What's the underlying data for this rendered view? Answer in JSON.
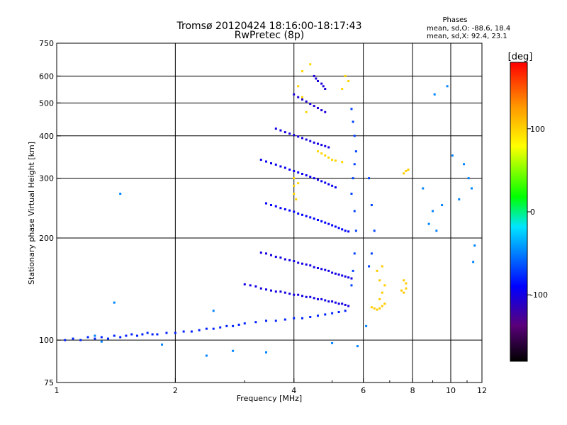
{
  "chart_data": {
    "type": "scatter",
    "title": "Tromsø 20120424 18:16:00-18:17:43",
    "subtitle": "RwPretec (8p)",
    "xlabel": "Frequency [MHz]",
    "ylabel": "Stationary phase Virtual Height [km]",
    "xscale": "log",
    "yscale": "log",
    "xlim": [
      1,
      12
    ],
    "ylim": [
      75,
      750
    ],
    "xticks": [
      1,
      2,
      4,
      6,
      8,
      10,
      12
    ],
    "xticklabels": [
      "1",
      "2",
      "4",
      "6",
      "8",
      "10",
      "12"
    ],
    "yticks": [
      75,
      100,
      200,
      300,
      400,
      500,
      600,
      750
    ],
    "yticklabels": [
      "75",
      "100",
      "200",
      "300",
      "400",
      "500",
      "600",
      "750"
    ],
    "grid": true,
    "stats": {
      "header": "Phases",
      "line1": "mean, sd,O: -88.6, 18.4",
      "line2": "mean, sd,X:  92.4, 23.1"
    },
    "colorbar": {
      "label": "[deg]",
      "range": [
        -180,
        180
      ],
      "ticks": [
        100,
        0,
        -100
      ],
      "ticklabels": [
        "100",
        "0",
        "-100"
      ],
      "colormap": "rainbow (black-purple-blue-cyan-green-yellow-orange-red)"
    },
    "series": [
      {
        "points": [
          [
            1.05,
            100
          ],
          [
            1.1,
            101
          ],
          [
            1.15,
            100
          ],
          [
            1.2,
            102
          ],
          [
            1.25,
            101
          ],
          [
            1.3,
            102
          ],
          [
            1.35,
            101
          ],
          [
            1.4,
            103
          ],
          [
            1.45,
            102
          ],
          [
            1.5,
            103
          ],
          [
            1.55,
            104
          ],
          [
            1.6,
            103
          ],
          [
            1.65,
            104
          ],
          [
            1.7,
            105
          ],
          [
            1.75,
            104
          ],
          [
            1.8,
            104
          ],
          [
            1.9,
            105
          ],
          [
            2.0,
            105
          ],
          [
            2.1,
            106
          ],
          [
            2.2,
            106
          ],
          [
            2.3,
            107
          ],
          [
            2.4,
            108
          ],
          [
            2.5,
            108
          ],
          [
            2.6,
            109
          ],
          [
            2.7,
            110
          ],
          [
            2.8,
            110
          ],
          [
            2.9,
            111
          ],
          [
            3.0,
            112
          ],
          [
            3.2,
            113
          ],
          [
            3.4,
            114
          ],
          [
            3.6,
            114
          ],
          [
            3.8,
            115
          ],
          [
            4.0,
            116
          ],
          [
            4.2,
            116
          ],
          [
            4.4,
            117
          ],
          [
            4.6,
            118
          ],
          [
            4.8,
            119
          ],
          [
            5.0,
            120
          ],
          [
            5.2,
            121
          ],
          [
            5.4,
            122
          ]
        ],
        "phase": -80
      },
      {
        "points": [
          [
            3.0,
            146
          ],
          [
            3.1,
            145
          ],
          [
            3.2,
            144
          ],
          [
            3.3,
            142
          ],
          [
            3.4,
            141
          ],
          [
            3.5,
            140
          ],
          [
            3.6,
            139
          ],
          [
            3.7,
            139
          ],
          [
            3.8,
            138
          ],
          [
            3.9,
            137
          ],
          [
            4.0,
            136
          ],
          [
            4.1,
            136
          ],
          [
            4.2,
            135
          ],
          [
            4.3,
            134
          ],
          [
            4.4,
            134
          ],
          [
            4.5,
            133
          ],
          [
            4.6,
            132
          ],
          [
            4.7,
            132
          ],
          [
            4.8,
            131
          ],
          [
            4.9,
            130
          ],
          [
            5.0,
            130
          ],
          [
            5.1,
            129
          ],
          [
            5.2,
            128
          ],
          [
            5.3,
            128
          ],
          [
            5.4,
            127
          ],
          [
            5.5,
            126
          ]
        ],
        "phase": -100
      },
      {
        "points": [
          [
            3.3,
            181
          ],
          [
            3.4,
            180
          ],
          [
            3.5,
            178
          ],
          [
            3.6,
            176
          ],
          [
            3.7,
            175
          ],
          [
            3.8,
            173
          ],
          [
            3.9,
            172
          ],
          [
            4.0,
            171
          ],
          [
            4.1,
            169
          ],
          [
            4.2,
            168
          ],
          [
            4.3,
            167
          ],
          [
            4.4,
            166
          ],
          [
            4.5,
            164
          ],
          [
            4.6,
            163
          ],
          [
            4.7,
            162
          ],
          [
            4.8,
            161
          ],
          [
            4.9,
            160
          ],
          [
            5.0,
            158
          ],
          [
            5.1,
            157
          ],
          [
            5.2,
            156
          ],
          [
            5.3,
            155
          ],
          [
            5.4,
            154
          ],
          [
            5.5,
            153
          ],
          [
            5.6,
            152
          ]
        ],
        "phase": -100
      },
      {
        "points": [
          [
            3.4,
            253
          ],
          [
            3.5,
            250
          ],
          [
            3.6,
            248
          ],
          [
            3.7,
            245
          ],
          [
            3.8,
            243
          ],
          [
            3.9,
            241
          ],
          [
            4.0,
            239
          ],
          [
            4.1,
            236
          ],
          [
            4.2,
            234
          ],
          [
            4.3,
            232
          ],
          [
            4.4,
            230
          ],
          [
            4.5,
            228
          ],
          [
            4.6,
            226
          ],
          [
            4.7,
            224
          ],
          [
            4.8,
            222
          ],
          [
            4.9,
            220
          ],
          [
            5.0,
            218
          ],
          [
            5.1,
            216
          ],
          [
            5.2,
            214
          ],
          [
            5.3,
            212
          ],
          [
            5.4,
            210
          ],
          [
            5.5,
            209
          ]
        ],
        "phase": -90
      },
      {
        "points": [
          [
            3.3,
            340
          ],
          [
            3.4,
            336
          ],
          [
            3.5,
            332
          ],
          [
            3.6,
            329
          ],
          [
            3.7,
            325
          ],
          [
            3.8,
            322
          ],
          [
            3.9,
            318
          ],
          [
            4.0,
            315
          ],
          [
            4.1,
            312
          ],
          [
            4.2,
            309
          ],
          [
            4.3,
            306
          ],
          [
            4.4,
            303
          ],
          [
            4.5,
            300
          ],
          [
            4.6,
            297
          ],
          [
            4.7,
            294
          ],
          [
            4.8,
            291
          ],
          [
            4.9,
            288
          ],
          [
            5.0,
            285
          ],
          [
            5.1,
            282
          ]
        ],
        "phase": -95
      },
      {
        "points": [
          [
            3.6,
            420
          ],
          [
            3.7,
            415
          ],
          [
            3.8,
            410
          ],
          [
            3.9,
            406
          ],
          [
            4.0,
            402
          ],
          [
            4.1,
            398
          ],
          [
            4.2,
            394
          ],
          [
            4.3,
            390
          ],
          [
            4.4,
            386
          ],
          [
            4.5,
            382
          ],
          [
            4.6,
            379
          ],
          [
            4.7,
            376
          ],
          [
            4.8,
            373
          ],
          [
            4.9,
            370
          ]
        ],
        "phase": -100
      },
      {
        "points": [
          [
            4.0,
            530
          ],
          [
            4.1,
            520
          ],
          [
            4.2,
            512
          ],
          [
            4.3,
            505
          ],
          [
            4.4,
            497
          ],
          [
            4.5,
            490
          ],
          [
            4.6,
            483
          ],
          [
            4.7,
            476
          ],
          [
            4.8,
            470
          ],
          [
            4.5,
            600
          ],
          [
            4.55,
            590
          ],
          [
            4.6,
            580
          ],
          [
            4.7,
            570
          ],
          [
            4.75,
            560
          ],
          [
            4.8,
            550
          ]
        ],
        "phase": -105
      },
      {
        "points": [
          [
            4.0,
            300
          ],
          [
            4.0,
            285
          ],
          [
            4.0,
            270
          ],
          [
            4.05,
            260
          ],
          [
            4.1,
            290
          ],
          [
            4.6,
            360
          ],
          [
            4.7,
            355
          ],
          [
            4.8,
            350
          ],
          [
            4.9,
            345
          ],
          [
            5.0,
            340
          ],
          [
            5.1,
            338
          ],
          [
            5.3,
            335
          ],
          [
            4.3,
            470
          ],
          [
            4.2,
            520
          ],
          [
            4.1,
            560
          ],
          [
            4.2,
            620
          ],
          [
            4.4,
            650
          ],
          [
            5.4,
            600
          ],
          [
            5.5,
            580
          ],
          [
            5.3,
            550
          ]
        ],
        "phase": 100
      },
      {
        "points": [
          [
            6.3,
            125
          ],
          [
            6.4,
            124
          ],
          [
            6.5,
            123
          ],
          [
            6.6,
            124
          ],
          [
            6.7,
            126
          ],
          [
            6.8,
            128
          ],
          [
            6.6,
            132
          ],
          [
            6.7,
            138
          ],
          [
            6.8,
            145
          ],
          [
            6.6,
            150
          ],
          [
            6.5,
            160
          ],
          [
            6.7,
            165
          ],
          [
            7.5,
            140
          ],
          [
            7.6,
            138
          ],
          [
            7.7,
            142
          ],
          [
            7.6,
            150
          ],
          [
            7.7,
            147
          ],
          [
            7.6,
            310
          ],
          [
            7.7,
            315
          ],
          [
            7.8,
            318
          ]
        ],
        "phase": 105
      },
      {
        "points": [
          [
            5.6,
            480
          ],
          [
            5.65,
            440
          ],
          [
            5.7,
            400
          ],
          [
            5.75,
            360
          ],
          [
            5.7,
            330
          ],
          [
            5.65,
            300
          ],
          [
            5.6,
            270
          ],
          [
            5.7,
            240
          ],
          [
            5.75,
            210
          ],
          [
            5.7,
            180
          ],
          [
            5.65,
            160
          ],
          [
            5.6,
            145
          ],
          [
            6.2,
            300
          ],
          [
            6.3,
            250
          ],
          [
            6.4,
            210
          ],
          [
            6.3,
            180
          ],
          [
            6.2,
            165
          ]
        ],
        "phase": -70
      },
      {
        "points": [
          [
            1.45,
            270
          ],
          [
            1.4,
            129
          ],
          [
            1.3,
            99
          ],
          [
            1.25,
            103
          ],
          [
            2.5,
            122
          ],
          [
            2.4,
            90
          ],
          [
            2.8,
            93
          ],
          [
            1.85,
            97
          ],
          [
            3.4,
            92
          ],
          [
            5.0,
            98
          ],
          [
            5.8,
            96
          ],
          [
            6.1,
            110
          ],
          [
            9.1,
            530
          ],
          [
            9.8,
            560
          ],
          [
            10.1,
            350
          ],
          [
            10.8,
            330
          ],
          [
            11.1,
            300
          ],
          [
            9.5,
            250
          ],
          [
            9.0,
            240
          ],
          [
            10.5,
            260
          ],
          [
            8.5,
            280
          ],
          [
            11.5,
            190
          ],
          [
            11.4,
            170
          ],
          [
            9.2,
            210
          ],
          [
            8.8,
            220
          ],
          [
            11.3,
            280
          ]
        ],
        "phase": -50
      }
    ]
  }
}
